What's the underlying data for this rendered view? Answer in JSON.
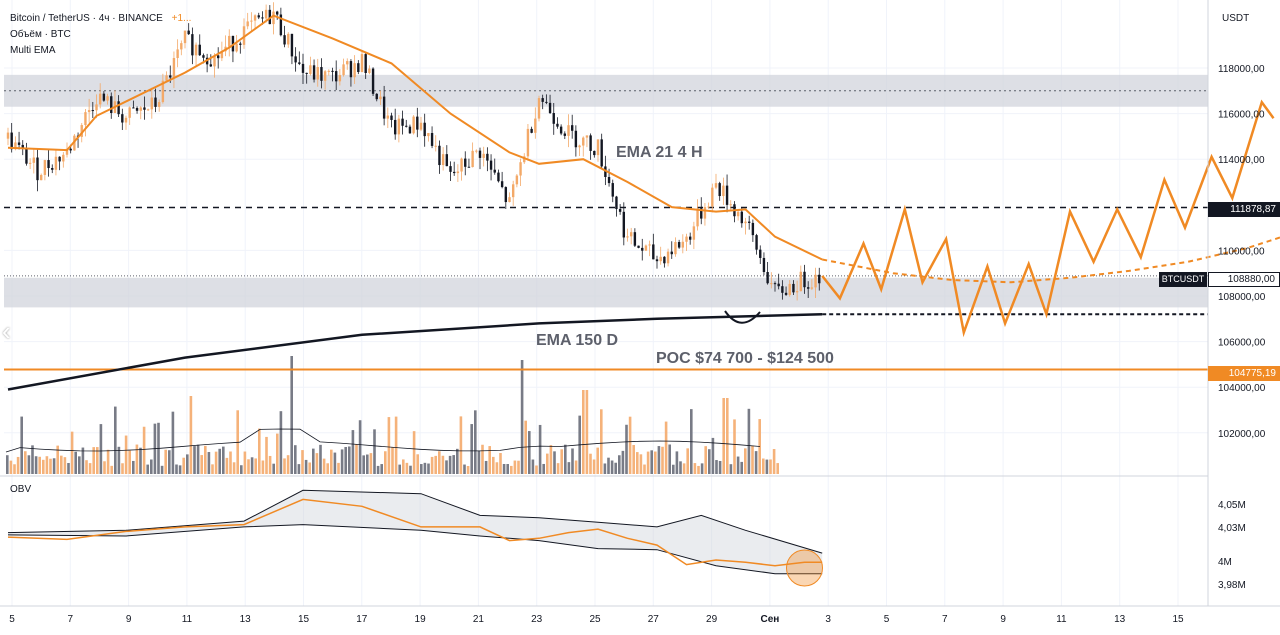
{
  "header": {
    "title": "Bitcoin / TetherUS · 4ч · BINANCE",
    "change": "+1...",
    "volume_label": "Объём · BTC",
    "ema_label": "Multi EMA",
    "obv_label": "OBV",
    "currency": "USDT"
  },
  "annotations": {
    "ema21": "EMA 21 4 H",
    "ema150": "EMA 150 D",
    "poc": "POC $74 700 - $124 500"
  },
  "price_tags": {
    "resistance": "111878,87",
    "current_symbol": "BTCUSDT",
    "current": "108880,00",
    "poc_level": "104775,19"
  },
  "colors": {
    "orange": "#f08a24",
    "candle_up": "#f3a968",
    "candle_down": "#131722",
    "zone": "#d1d4dc",
    "volume_up": "#f5b27a",
    "volume_down": "#787b86"
  },
  "chart_data": {
    "type": "candlestick",
    "symbol": "BTCUSDT",
    "timeframe": "4ч",
    "y_ticks": [
      "118000,00",
      "116000,00",
      "114000,00",
      "110000,00",
      "108000,00",
      "106000,00",
      "104000,00",
      "102000,00"
    ],
    "ylim": [
      101000,
      120500
    ],
    "x_ticks": [
      "5",
      "7",
      "9",
      "11",
      "13",
      "15",
      "17",
      "19",
      "21",
      "23",
      "25",
      "27",
      "29",
      "Сен",
      "3",
      "5",
      "7",
      "9",
      "11",
      "13",
      "15"
    ],
    "levels": {
      "resistance": 111878.87,
      "current": 108880,
      "poc": 104775.19
    },
    "zones": [
      [
        116300,
        117700
      ],
      [
        107500,
        108800
      ]
    ],
    "close_path": [
      {
        "x": 0,
        "y": 114900
      },
      {
        "x": 1,
        "y": 113500
      },
      {
        "x": 2,
        "y": 114300
      },
      {
        "x": 3,
        "y": 116800
      },
      {
        "x": 4,
        "y": 115800
      },
      {
        "x": 5,
        "y": 116400
      },
      {
        "x": 6,
        "y": 119200
      },
      {
        "x": 7,
        "y": 118400
      },
      {
        "x": 8,
        "y": 119600
      },
      {
        "x": 9,
        "y": 120400
      },
      {
        "x": 10,
        "y": 117800
      },
      {
        "x": 11,
        "y": 117600
      },
      {
        "x": 12,
        "y": 118300
      },
      {
        "x": 13,
        "y": 115300
      },
      {
        "x": 14,
        "y": 115600
      },
      {
        "x": 15,
        "y": 113200
      },
      {
        "x": 16,
        "y": 114400
      },
      {
        "x": 17,
        "y": 112000
      },
      {
        "x": 18,
        "y": 116800
      },
      {
        "x": 19,
        "y": 115100
      },
      {
        "x": 20,
        "y": 114500
      },
      {
        "x": 21,
        "y": 110500
      },
      {
        "x": 22,
        "y": 109600
      },
      {
        "x": 23,
        "y": 110500
      },
      {
        "x": 24,
        "y": 112900
      },
      {
        "x": 25,
        "y": 111200
      },
      {
        "x": 26,
        "y": 108100
      },
      {
        "x": 27,
        "y": 108700
      },
      {
        "x": 27.6,
        "y": 108880
      }
    ],
    "ema21_4h": [
      {
        "x": 0,
        "y": 114500
      },
      {
        "x": 2,
        "y": 114400
      },
      {
        "x": 3,
        "y": 115900
      },
      {
        "x": 6,
        "y": 117800
      },
      {
        "x": 7.5,
        "y": 118900
      },
      {
        "x": 9,
        "y": 120300
      },
      {
        "x": 11,
        "y": 119300
      },
      {
        "x": 13,
        "y": 118200
      },
      {
        "x": 15,
        "y": 116000
      },
      {
        "x": 17,
        "y": 114300
      },
      {
        "x": 18,
        "y": 113800
      },
      {
        "x": 19.5,
        "y": 114000
      },
      {
        "x": 21,
        "y": 113000
      },
      {
        "x": 22.5,
        "y": 111900
      },
      {
        "x": 24,
        "y": 111700
      },
      {
        "x": 25,
        "y": 111800
      },
      {
        "x": 26,
        "y": 110600
      },
      {
        "x": 27.6,
        "y": 109600
      }
    ],
    "ema150_d": [
      {
        "x": 0,
        "y": 103900
      },
      {
        "x": 6,
        "y": 105300
      },
      {
        "x": 12,
        "y": 106300
      },
      {
        "x": 18,
        "y": 106800
      },
      {
        "x": 22,
        "y": 107000
      },
      {
        "x": 27.6,
        "y": 107200
      }
    ],
    "projection_zigzag": [
      {
        "x": 27.6,
        "y": 108880
      },
      {
        "x": 28.2,
        "y": 107900
      },
      {
        "x": 29,
        "y": 110300
      },
      {
        "x": 29.6,
        "y": 108300
      },
      {
        "x": 30.4,
        "y": 111800
      },
      {
        "x": 31,
        "y": 108600
      },
      {
        "x": 31.8,
        "y": 110500
      },
      {
        "x": 32.4,
        "y": 106400
      },
      {
        "x": 33.2,
        "y": 109300
      },
      {
        "x": 33.8,
        "y": 106800
      },
      {
        "x": 34.6,
        "y": 109400
      },
      {
        "x": 35.2,
        "y": 107200
      },
      {
        "x": 36.0,
        "y": 111700
      },
      {
        "x": 36.8,
        "y": 109500
      },
      {
        "x": 37.6,
        "y": 111800
      },
      {
        "x": 38.4,
        "y": 109700
      },
      {
        "x": 39.2,
        "y": 113100
      },
      {
        "x": 39.9,
        "y": 111000
      },
      {
        "x": 40.8,
        "y": 114100
      },
      {
        "x": 41.5,
        "y": 112300
      },
      {
        "x": 42.5,
        "y": 116500
      },
      {
        "x": 42.9,
        "y": 115800
      }
    ],
    "projection_ema21": [
      {
        "x": 27.6,
        "y": 109600
      },
      {
        "x": 30,
        "y": 109000
      },
      {
        "x": 32,
        "y": 108700
      },
      {
        "x": 34,
        "y": 108600
      },
      {
        "x": 36,
        "y": 108800
      },
      {
        "x": 38,
        "y": 109100
      },
      {
        "x": 40,
        "y": 109500
      },
      {
        "x": 42,
        "y": 110100
      },
      {
        "x": 43.2,
        "y": 110600
      }
    ],
    "obv_ticks": [
      "4,05M",
      "4,03M",
      "4M",
      "3,98M"
    ],
    "obv_ylim": [
      3.975,
      4.065
    ],
    "obv": [
      {
        "x": 0,
        "y": 4.021
      },
      {
        "x": 2,
        "y": 4.019
      },
      {
        "x": 4,
        "y": 4.026
      },
      {
        "x": 6,
        "y": 4.03
      },
      {
        "x": 8,
        "y": 4.032
      },
      {
        "x": 10,
        "y": 4.054
      },
      {
        "x": 12,
        "y": 4.048
      },
      {
        "x": 14,
        "y": 4.03
      },
      {
        "x": 16,
        "y": 4.03
      },
      {
        "x": 17,
        "y": 4.018
      },
      {
        "x": 18,
        "y": 4.02
      },
      {
        "x": 19,
        "y": 4.025
      },
      {
        "x": 20,
        "y": 4.028
      },
      {
        "x": 21,
        "y": 4.02
      },
      {
        "x": 22,
        "y": 4.014
      },
      {
        "x": 23,
        "y": 3.997
      },
      {
        "x": 24,
        "y": 4.001
      },
      {
        "x": 25,
        "y": 3.999
      },
      {
        "x": 26,
        "y": 3.996
      },
      {
        "x": 27,
        "y": 3.999
      },
      {
        "x": 27.6,
        "y": 3.999
      }
    ],
    "obv_band_upper": [
      {
        "x": 0,
        "y": 4.025
      },
      {
        "x": 4,
        "y": 4.027
      },
      {
        "x": 8,
        "y": 4.035
      },
      {
        "x": 10,
        "y": 4.062
      },
      {
        "x": 14,
        "y": 4.059
      },
      {
        "x": 16,
        "y": 4.04
      },
      {
        "x": 18,
        "y": 4.038
      },
      {
        "x": 20,
        "y": 4.034
      },
      {
        "x": 22,
        "y": 4.03
      },
      {
        "x": 23.5,
        "y": 4.04
      },
      {
        "x": 25,
        "y": 4.027
      },
      {
        "x": 27.6,
        "y": 4.007
      }
    ],
    "obv_band_lower": [
      {
        "x": 0,
        "y": 4.023
      },
      {
        "x": 4,
        "y": 4.022
      },
      {
        "x": 8,
        "y": 4.03
      },
      {
        "x": 10,
        "y": 4.032
      },
      {
        "x": 14,
        "y": 4.027
      },
      {
        "x": 16,
        "y": 4.022
      },
      {
        "x": 18,
        "y": 4.018
      },
      {
        "x": 20,
        "y": 4.011
      },
      {
        "x": 22,
        "y": 4.01
      },
      {
        "x": 24,
        "y": 3.996
      },
      {
        "x": 26,
        "y": 3.989
      },
      {
        "x": 27.6,
        "y": 3.989
      }
    ]
  }
}
